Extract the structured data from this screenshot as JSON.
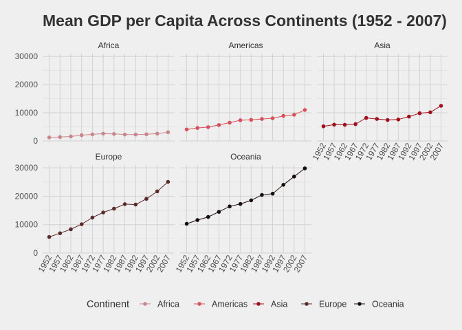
{
  "chart_data": {
    "type": "line",
    "title": "Mean GDP per Capita Across Continents (1952 - 2007)",
    "x": [
      1952,
      1957,
      1962,
      1967,
      1972,
      1977,
      1982,
      1987,
      1992,
      1997,
      2002,
      2007
    ],
    "x_tick_labels": [
      "1952",
      "1957",
      "1962",
      "1967",
      "1972",
      "1977",
      "1982",
      "1987",
      "1992",
      "1997",
      "2002",
      "2007"
    ],
    "ylim": [
      0,
      31000
    ],
    "y_ticks": [
      0,
      10000,
      20000,
      30000
    ],
    "y_tick_labels": [
      "0",
      "10000",
      "20000",
      "30000"
    ],
    "grid": true,
    "layout": "facet_wrap",
    "legend": {
      "title": "Continent",
      "position": "bottom"
    },
    "series": [
      {
        "name": "Africa",
        "color": "#c9878d",
        "values": [
          1253,
          1385,
          1598,
          2050,
          2340,
          2586,
          2482,
          2283,
          2282,
          2379,
          2599,
          3089
        ]
      },
      {
        "name": "Americas",
        "color": "#d8505a",
        "values": [
          4079,
          4616,
          4902,
          5668,
          6491,
          7352,
          7507,
          7793,
          8045,
          8890,
          9288,
          11003
        ]
      },
      {
        "name": "Asia",
        "color": "#a0101c",
        "values": [
          5195,
          5788,
          5729,
          5971,
          8187,
          7791,
          7435,
          7608,
          8640,
          9834,
          10174,
          12473
        ]
      },
      {
        "name": "Europe",
        "color": "#5a2a2a",
        "values": [
          5661,
          6963,
          8365,
          10144,
          12480,
          14284,
          15618,
          17214,
          17062,
          19077,
          21712,
          25054
        ]
      },
      {
        "name": "Oceania",
        "color": "#1a0d0d",
        "values": [
          10298,
          11599,
          12696,
          14495,
          16417,
          17284,
          18555,
          20448,
          20894,
          24024,
          26939,
          29810
        ]
      }
    ]
  }
}
